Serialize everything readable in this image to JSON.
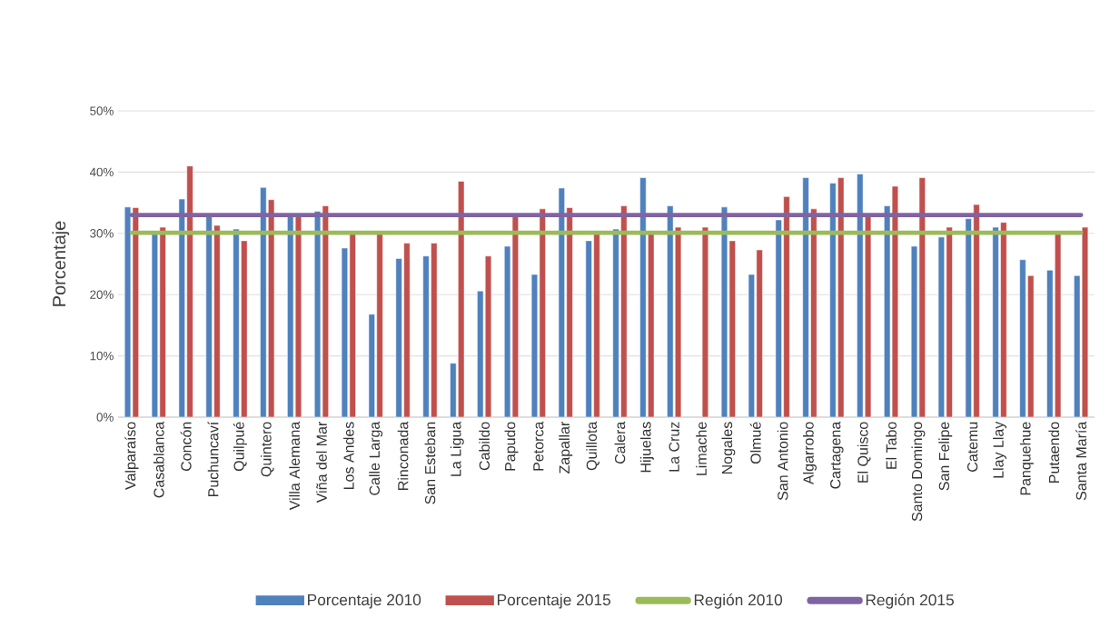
{
  "chart_data": {
    "type": "bar",
    "ylabel": "Porcentaje",
    "categories": [
      "Valparaíso",
      "Casablanca",
      "Concón",
      "Puchuncaví",
      "Quilpué",
      "Quintero",
      "Villa Alemana",
      "Viña del Mar",
      "Los Andes",
      "Calle Larga",
      "Rinconada",
      "San Esteban",
      "La Ligua",
      "Cabildo",
      "Papudo",
      "Petorca",
      "Zapallar",
      "Quillota",
      "Calera",
      "Hijuelas",
      "La Cruz",
      "Limache",
      "Nogales",
      "Olmué",
      "San Antonio",
      "Algarrobo",
      "Cartagena",
      "El Quisco",
      "El Tabo",
      "Santo Domingo",
      "San Felipe",
      "Catemu",
      "Llay Llay",
      "Panquehue",
      "Putaendo",
      "Santa María"
    ],
    "series": [
      {
        "name": "Porcentaje 2010",
        "color": "#4f81bd",
        "values": [
          34.3,
          30.0,
          35.6,
          32.8,
          30.7,
          37.5,
          33.0,
          33.6,
          27.6,
          16.8,
          25.9,
          26.3,
          8.8,
          20.6,
          27.9,
          23.3,
          37.4,
          28.8,
          30.7,
          39.1,
          34.5,
          null,
          34.3,
          23.3,
          32.2,
          39.1,
          38.2,
          39.7,
          34.5,
          27.9,
          29.4,
          32.4,
          31.0,
          25.7,
          24.0,
          23.1
        ]
      },
      {
        "name": "Porcentaje 2015",
        "color": "#c0504d",
        "values": [
          34.2,
          31.0,
          41.0,
          31.3,
          28.8,
          35.5,
          33.0,
          34.5,
          30.0,
          30.0,
          28.4,
          28.4,
          38.5,
          26.3,
          32.9,
          34.0,
          34.2,
          30.0,
          34.5,
          30.0,
          31.0,
          31.0,
          28.8,
          27.3,
          36.0,
          34.0,
          39.1,
          32.9,
          37.7,
          39.1,
          31.0,
          34.7,
          31.8,
          23.1,
          30.0,
          31.0
        ]
      },
      {
        "name": "Región 2010",
        "type": "line",
        "color": "#9bbb59",
        "values": [
          30.1,
          30.1,
          30.1,
          30.1,
          30.1,
          30.1,
          30.1,
          30.1,
          30.1,
          30.1,
          30.1,
          30.1,
          30.1,
          30.1,
          30.1,
          30.1,
          30.1,
          30.1,
          30.1,
          30.1,
          30.1,
          30.1,
          30.1,
          30.1,
          30.1,
          30.1,
          30.1,
          30.1,
          30.1,
          30.1,
          30.1,
          30.1,
          30.1,
          30.1,
          30.1,
          30.1
        ]
      },
      {
        "name": "Región 2015",
        "type": "line",
        "color": "#8064a2",
        "values": [
          33.0,
          33.0,
          33.0,
          33.0,
          33.0,
          33.0,
          33.0,
          33.0,
          33.0,
          33.0,
          33.0,
          33.0,
          33.0,
          33.0,
          33.0,
          33.0,
          33.0,
          33.0,
          33.0,
          33.0,
          33.0,
          33.0,
          33.0,
          33.0,
          33.0,
          33.0,
          33.0,
          33.0,
          33.0,
          33.0,
          33.0,
          33.0,
          33.0,
          33.0,
          33.0,
          33.0
        ]
      }
    ],
    "ylim": [
      0,
      50
    ],
    "yticks": [
      {
        "value": 0,
        "label": "0%"
      },
      {
        "value": 10,
        "label": "10%"
      },
      {
        "value": 20,
        "label": "20%"
      },
      {
        "value": 30,
        "label": "30%"
      },
      {
        "value": 40,
        "label": "40%"
      },
      {
        "value": 50,
        "label": "50%"
      }
    ],
    "grid": "y",
    "legend": "bottom"
  }
}
